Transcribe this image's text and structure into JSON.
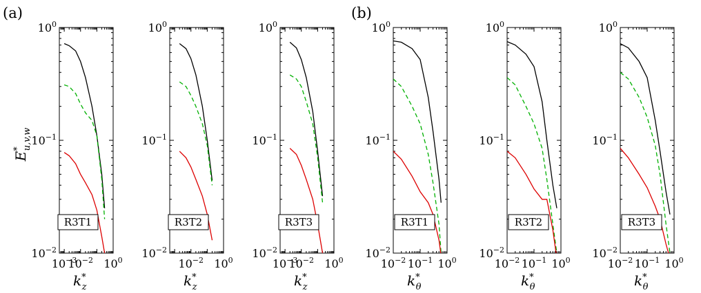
{
  "figure": {
    "group_labels": [
      "(a)",
      "(b)"
    ],
    "ylabel": {
      "base": "E",
      "sup": "*",
      "sub": "u,v,w"
    },
    "xlabels": [
      {
        "base": "k",
        "sup": "*",
        "sub": "z"
      },
      {
        "base": "k",
        "sup": "*",
        "sub": "θ"
      }
    ],
    "y_tick_labels": [
      {
        "base": "10",
        "exp": "0"
      },
      {
        "base": "10",
        "exp": "−1"
      },
      {
        "base": "10",
        "exp": "−2"
      }
    ]
  },
  "colors": {
    "u": "#000000",
    "v": "#00b000",
    "w": "#dd0000"
  },
  "chart_data": [
    {
      "type": "line",
      "group": "a",
      "case_label": "R3T1",
      "xscale": "log",
      "yscale": "log",
      "xlim": [
        0.0005,
        1
      ],
      "ylim": [
        0.01,
        1
      ],
      "x_tick_labels": [
        {
          "base": "10",
          "exp": "−3"
        },
        {
          "base": "10",
          "exp": "−2"
        },
        {
          "base": "10",
          "exp": "0"
        }
      ],
      "series": [
        {
          "style": "solid",
          "color": "u",
          "x": [
            0.001,
            0.002,
            0.005,
            0.01,
            0.02,
            0.05,
            0.1,
            0.2,
            0.3
          ],
          "y": [
            0.72,
            0.69,
            0.62,
            0.5,
            0.36,
            0.2,
            0.11,
            0.05,
            0.025
          ]
        },
        {
          "style": "dashed",
          "color": "v",
          "x": [
            0.001,
            0.002,
            0.005,
            0.01,
            0.02,
            0.05,
            0.1,
            0.2,
            0.3
          ],
          "y": [
            0.31,
            0.3,
            0.26,
            0.21,
            0.175,
            0.15,
            0.11,
            0.045,
            0.02
          ]
        },
        {
          "style": "solid",
          "color": "w",
          "x": [
            0.001,
            0.002,
            0.005,
            0.01,
            0.02,
            0.05,
            0.1,
            0.2,
            0.3
          ],
          "y": [
            0.078,
            0.073,
            0.062,
            0.05,
            0.042,
            0.033,
            0.024,
            0.014,
            0.01
          ]
        }
      ]
    },
    {
      "type": "line",
      "group": "a",
      "case_label": "R3T2",
      "xscale": "log",
      "yscale": "log",
      "xlim": [
        0.0005,
        1
      ],
      "ylim": [
        0.01,
        1
      ],
      "x_tick_labels": [
        {
          "base": "10",
          "exp": "−2"
        },
        {
          "base": "10",
          "exp": "0"
        }
      ],
      "series": [
        {
          "style": "solid",
          "color": "u",
          "x": [
            0.002,
            0.005,
            0.01,
            0.02,
            0.05,
            0.1,
            0.2
          ],
          "y": [
            0.72,
            0.65,
            0.53,
            0.38,
            0.2,
            0.1,
            0.044
          ]
        },
        {
          "style": "dashed",
          "color": "v",
          "x": [
            0.002,
            0.005,
            0.01,
            0.02,
            0.05,
            0.1,
            0.2
          ],
          "y": [
            0.33,
            0.3,
            0.25,
            0.2,
            0.14,
            0.09,
            0.04
          ]
        },
        {
          "style": "solid",
          "color": "w",
          "x": [
            0.002,
            0.005,
            0.01,
            0.02,
            0.05,
            0.1,
            0.2
          ],
          "y": [
            0.08,
            0.07,
            0.058,
            0.045,
            0.032,
            0.022,
            0.013
          ]
        }
      ]
    },
    {
      "type": "line",
      "group": "a",
      "case_label": "R3T3",
      "xscale": "log",
      "yscale": "log",
      "xlim": [
        0.0005,
        1
      ],
      "ylim": [
        0.01,
        1
      ],
      "x_tick_labels": [
        {
          "base": "10",
          "exp": "−3"
        },
        {
          "base": "10",
          "exp": "−2"
        },
        {
          "base": "10",
          "exp": "0"
        }
      ],
      "series": [
        {
          "style": "solid",
          "color": "u",
          "x": [
            0.002,
            0.005,
            0.01,
            0.02,
            0.05,
            0.1,
            0.2
          ],
          "y": [
            0.74,
            0.66,
            0.52,
            0.36,
            0.18,
            0.08,
            0.032
          ]
        },
        {
          "style": "dashed",
          "color": "v",
          "x": [
            0.002,
            0.005,
            0.01,
            0.02,
            0.05,
            0.1,
            0.2
          ],
          "y": [
            0.38,
            0.35,
            0.3,
            0.22,
            0.14,
            0.07,
            0.028
          ]
        },
        {
          "style": "solid",
          "color": "w",
          "x": [
            0.002,
            0.005,
            0.01,
            0.02,
            0.05,
            0.1,
            0.2
          ],
          "y": [
            0.085,
            0.075,
            0.06,
            0.045,
            0.03,
            0.018,
            0.01
          ]
        }
      ]
    },
    {
      "type": "line",
      "group": "b",
      "case_label": "R3T1",
      "xscale": "log",
      "yscale": "log",
      "xlim": [
        0.01,
        1
      ],
      "ylim": [
        0.01,
        1
      ],
      "x_tick_labels": [
        {
          "base": "10",
          "exp": "−2"
        },
        {
          "base": "10",
          "exp": "−1"
        },
        {
          "base": "10",
          "exp": "0"
        }
      ],
      "series": [
        {
          "style": "solid",
          "color": "u",
          "x": [
            0.01,
            0.02,
            0.05,
            0.1,
            0.2,
            0.3,
            0.5,
            0.6
          ],
          "y": [
            0.76,
            0.74,
            0.65,
            0.52,
            0.24,
            0.12,
            0.045,
            0.028
          ]
        },
        {
          "style": "dashed",
          "color": "v",
          "x": [
            0.01,
            0.02,
            0.05,
            0.1,
            0.2,
            0.3,
            0.5,
            0.6
          ],
          "y": [
            0.35,
            0.3,
            0.2,
            0.14,
            0.075,
            0.042,
            0.018,
            0.01
          ]
        },
        {
          "style": "solid",
          "color": "w",
          "x": [
            0.01,
            0.02,
            0.05,
            0.1,
            0.2,
            0.3,
            0.5,
            0.6
          ],
          "y": [
            0.08,
            0.068,
            0.048,
            0.035,
            0.028,
            0.022,
            0.013,
            0.0095
          ]
        }
      ]
    },
    {
      "type": "line",
      "group": "b",
      "case_label": "R3T2",
      "xscale": "log",
      "yscale": "log",
      "xlim": [
        0.01,
        1
      ],
      "ylim": [
        0.01,
        1
      ],
      "x_tick_labels": [
        {
          "base": "10",
          "exp": "−2"
        },
        {
          "base": "10",
          "exp": "−1"
        },
        {
          "base": "10",
          "exp": "0"
        }
      ],
      "series": [
        {
          "style": "solid",
          "color": "u",
          "x": [
            0.01,
            0.02,
            0.05,
            0.1,
            0.2,
            0.3,
            0.5,
            0.7
          ],
          "y": [
            0.75,
            0.7,
            0.58,
            0.45,
            0.22,
            0.1,
            0.04,
            0.025
          ]
        },
        {
          "style": "dashed",
          "color": "v",
          "x": [
            0.01,
            0.02,
            0.05,
            0.1,
            0.2,
            0.3,
            0.5,
            0.7
          ],
          "y": [
            0.36,
            0.31,
            0.2,
            0.14,
            0.085,
            0.045,
            0.018,
            0.01
          ]
        },
        {
          "style": "solid",
          "color": "w",
          "x": [
            0.01,
            0.02,
            0.05,
            0.1,
            0.2,
            0.3,
            0.5,
            0.7
          ],
          "y": [
            0.08,
            0.07,
            0.05,
            0.037,
            0.03,
            0.03,
            0.016,
            0.009
          ]
        }
      ]
    },
    {
      "type": "line",
      "group": "b",
      "case_label": "R3T3",
      "xscale": "log",
      "yscale": "log",
      "xlim": [
        0.01,
        1
      ],
      "ylim": [
        0.01,
        1
      ],
      "x_tick_labels": [
        {
          "base": "10",
          "exp": "−2"
        },
        {
          "base": "10",
          "exp": "−1"
        },
        {
          "base": "10",
          "exp": "0"
        }
      ],
      "series": [
        {
          "style": "solid",
          "color": "u",
          "x": [
            0.01,
            0.02,
            0.05,
            0.1,
            0.2,
            0.3,
            0.5,
            0.7
          ],
          "y": [
            0.72,
            0.66,
            0.5,
            0.36,
            0.15,
            0.08,
            0.035,
            0.022
          ]
        },
        {
          "style": "dashed",
          "color": "v",
          "x": [
            0.01,
            0.02,
            0.05,
            0.1,
            0.2,
            0.3,
            0.5,
            0.7
          ],
          "y": [
            0.4,
            0.35,
            0.24,
            0.16,
            0.09,
            0.05,
            0.018,
            0.01
          ]
        },
        {
          "style": "solid",
          "color": "w",
          "x": [
            0.01,
            0.02,
            0.05,
            0.1,
            0.2,
            0.3,
            0.5,
            0.7
          ],
          "y": [
            0.085,
            0.07,
            0.05,
            0.038,
            0.026,
            0.02,
            0.012,
            0.009
          ]
        }
      ]
    }
  ]
}
